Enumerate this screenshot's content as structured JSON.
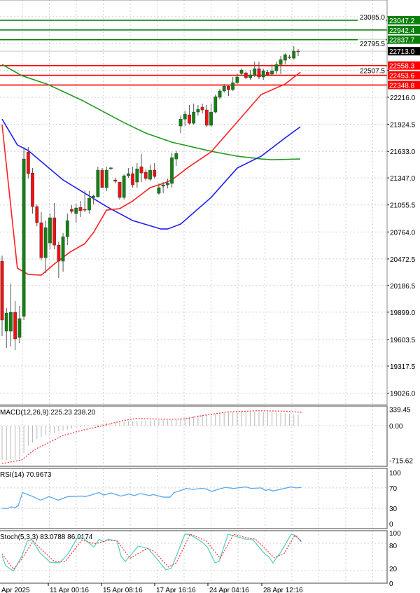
{
  "colors": {
    "bull": "#118211",
    "bear": "#ee1111",
    "ma_fast": "#ff2020",
    "ma_mid": "#1c1cf0",
    "ma_slow": "#1f9a1f",
    "rsi": "#5aa9f0",
    "stoch_k": "#5fcfc4",
    "stoch_d": "#ff3030",
    "resistance": "#0b7f0b",
    "support": "#ff0000",
    "current": "#000000"
  },
  "main": {
    "price_ticks": [
      "23085.0",
      "22795.5",
      "22507.5",
      "22216.0",
      "21924.5",
      "21633.0",
      "21347.0",
      "21055.5",
      "20764.0",
      "20472.5",
      "20186.5",
      "19899.0",
      "19603.5",
      "19317.5",
      "19026.0"
    ],
    "resistance_levels": [
      "23047.2",
      "22942.4",
      "22837.7"
    ],
    "support_levels": [
      "22558.3",
      "22453.6",
      "22348.8"
    ],
    "current_price": "22713.0",
    "candles": [
      [
        20449,
        20509,
        19641,
        19815
      ],
      [
        19694,
        19943,
        19513,
        19890
      ],
      [
        19694,
        20207,
        19528,
        19898
      ],
      [
        19898,
        20019,
        19490,
        19611
      ],
      [
        19626,
        19966,
        19566,
        19830
      ],
      [
        19853,
        21680,
        19815,
        21551
      ],
      [
        21627,
        21680,
        21340,
        21393
      ],
      [
        21400,
        21453,
        20962,
        21038
      ],
      [
        21038,
        21060,
        20826,
        20864
      ],
      [
        20864,
        20977,
        20456,
        20487
      ],
      [
        20487,
        20887,
        20321,
        20811
      ],
      [
        20645,
        20962,
        20577,
        20917
      ],
      [
        20917,
        21076,
        20577,
        20622
      ],
      [
        20622,
        20660,
        20268,
        20449
      ],
      [
        20449,
        20751,
        20336,
        20713
      ],
      [
        20713,
        20962,
        20622,
        20887
      ],
      [
        21008,
        21053,
        20962,
        20985
      ],
      [
        20962,
        21068,
        20864,
        21023
      ],
      [
        21030,
        21098,
        20925,
        20993
      ],
      [
        21008,
        21211,
        20977,
        21000
      ],
      [
        21000,
        21204,
        20962,
        21128
      ],
      [
        21136,
        21166,
        21060,
        21151
      ],
      [
        21143,
        21468,
        21136,
        21430
      ],
      [
        21430,
        21453,
        21242,
        21242
      ],
      [
        21242,
        21468,
        21204,
        21430
      ],
      [
        21453,
        21468,
        21430,
        21455
      ],
      [
        21325,
        21347,
        21287,
        21310
      ],
      [
        21302,
        21302,
        21113,
        21136
      ],
      [
        21136,
        21385,
        21113,
        21370
      ],
      [
        21370,
        21453,
        21347,
        21393
      ],
      [
        21393,
        21468,
        21242,
        21272
      ],
      [
        21302,
        21506,
        21242,
        21445
      ],
      [
        21468,
        21604,
        21302,
        21400
      ],
      [
        21408,
        21438,
        21317,
        21340
      ],
      [
        21332,
        21491,
        21317,
        21430
      ],
      [
        21430,
        21506,
        21340,
        21362
      ],
      [
        21181,
        21287,
        21166,
        21242
      ],
      [
        21257,
        21302,
        21181,
        21272
      ],
      [
        21272,
        21340,
        21234,
        21294
      ],
      [
        21287,
        21619,
        21242,
        21566
      ],
      [
        21551,
        21642,
        21476,
        21611
      ],
      [
        21906,
        22019,
        21830,
        21981
      ],
      [
        21981,
        22072,
        21906,
        22034
      ],
      [
        22027,
        22133,
        21921,
        21936
      ],
      [
        21936,
        22148,
        21921,
        22057
      ],
      [
        22057,
        22133,
        22019,
        22087
      ],
      [
        22110,
        22148,
        22042,
        22080
      ],
      [
        22080,
        22133,
        21898,
        21914
      ],
      [
        21914,
        22148,
        21898,
        22057
      ],
      [
        22057,
        22246,
        22042,
        22223
      ],
      [
        22216,
        22306,
        22193,
        22284
      ],
      [
        22284,
        22359,
        22268,
        22336
      ],
      [
        22336,
        22351,
        22231,
        22299
      ],
      [
        22299,
        22435,
        22284,
        22374
      ],
      [
        22374,
        22472,
        22359,
        22435
      ],
      [
        22472,
        22525,
        22450,
        22510
      ],
      [
        22480,
        22495,
        22412,
        22427
      ],
      [
        22427,
        22510,
        22404,
        22457
      ],
      [
        22457,
        22601,
        22435,
        22525
      ],
      [
        22525,
        22601,
        22412,
        22435
      ],
      [
        22435,
        22525,
        22404,
        22502
      ],
      [
        22487,
        22510,
        22442,
        22457
      ],
      [
        22465,
        22570,
        22450,
        22502
      ],
      [
        22502,
        22601,
        22465,
        22570
      ],
      [
        22570,
        22661,
        22465,
        22623
      ],
      [
        22616,
        22691,
        22570,
        22676
      ],
      [
        22646,
        22676,
        22631,
        22653
      ],
      [
        22638,
        22767,
        22623,
        22714
      ],
      [
        22714,
        22736,
        22661,
        22713
      ]
    ],
    "ma_fast": [
      [
        0,
        21921
      ],
      [
        3.5,
        20374
      ],
      [
        6,
        20306
      ],
      [
        9,
        20298
      ],
      [
        12,
        20419
      ],
      [
        15.6,
        20547
      ],
      [
        19,
        20638
      ],
      [
        21,
        20758
      ],
      [
        24,
        21000
      ],
      [
        27,
        21015
      ],
      [
        30,
        21098
      ],
      [
        34,
        21242
      ],
      [
        37,
        21287
      ],
      [
        39,
        21325
      ],
      [
        42.5,
        21453
      ],
      [
        48,
        21627
      ],
      [
        59.5,
        22246
      ],
      [
        65,
        22359
      ],
      [
        68.5,
        22487
      ]
    ],
    "ma_mid": [
      [
        0,
        21981
      ],
      [
        3.5,
        21702
      ],
      [
        6,
        21642
      ],
      [
        14,
        21325
      ],
      [
        24,
        21038
      ],
      [
        30,
        20887
      ],
      [
        36.5,
        20796
      ],
      [
        38,
        20796
      ],
      [
        41,
        20849
      ],
      [
        48,
        21136
      ],
      [
        54,
        21453
      ],
      [
        59.5,
        21581
      ],
      [
        65,
        21778
      ],
      [
        68.5,
        21898
      ]
    ],
    "ma_slow": [
      [
        0,
        22570
      ],
      [
        4.5,
        22450
      ],
      [
        10.3,
        22359
      ],
      [
        18.3,
        22185
      ],
      [
        28,
        21943
      ],
      [
        33,
        21830
      ],
      [
        39,
        21732
      ],
      [
        48,
        21634
      ],
      [
        54,
        21581
      ],
      [
        59.5,
        21551
      ],
      [
        62,
        21543
      ],
      [
        68.5,
        21551
      ]
    ]
  },
  "macd": {
    "label": "MACD(12,26,9) 225.23 238.20",
    "ticks": [
      "339.45",
      "0.00",
      "-715.62"
    ],
    "histogram": [
      -710,
      -712,
      -705,
      -700,
      -690,
      -560,
      -419,
      -350,
      -275,
      -240,
      -200,
      -175,
      -150,
      -120,
      -100,
      -80,
      -60,
      -45,
      -30,
      -20,
      -10,
      10,
      25,
      40,
      55,
      65,
      80,
      85,
      90,
      95,
      95,
      100,
      100,
      105,
      105,
      110,
      108,
      110,
      110,
      115,
      130,
      150,
      170,
      185,
      200,
      215,
      225,
      230,
      240,
      250,
      260,
      265,
      270,
      275,
      280,
      285,
      285,
      285,
      288,
      285,
      285,
      280,
      275,
      270,
      265,
      255,
      245,
      235,
      225
    ],
    "signal": [
      [
        0,
        -780
      ],
      [
        4.5,
        -708
      ],
      [
        7.5,
        -491
      ],
      [
        10.8,
        -347
      ],
      [
        14,
        -202
      ],
      [
        18.3,
        -97
      ],
      [
        23.3,
        4
      ],
      [
        27.6,
        101
      ],
      [
        30.7,
        149
      ],
      [
        38.3,
        130
      ],
      [
        42,
        140
      ],
      [
        46.3,
        212
      ],
      [
        51.9,
        285
      ],
      [
        58.8,
        308
      ],
      [
        65.1,
        299
      ],
      [
        69,
        275
      ]
    ]
  },
  "rsi": {
    "label": "RSI(14) 70.9673",
    "ticks": [
      "100",
      "70",
      "30",
      "0"
    ],
    "values": [
      [
        0,
        30
      ],
      [
        1.4,
        30
      ],
      [
        2.1,
        33
      ],
      [
        2.9,
        31
      ],
      [
        3.7,
        35
      ],
      [
        4.7,
        61
      ],
      [
        7.1,
        53
      ],
      [
        8.8,
        46
      ],
      [
        10.8,
        53
      ],
      [
        12.9,
        46
      ],
      [
        15.1,
        53
      ],
      [
        18.2,
        54
      ],
      [
        19.1,
        53
      ],
      [
        20.4,
        56
      ],
      [
        22.3,
        61
      ],
      [
        23.3,
        56
      ],
      [
        25.1,
        60
      ],
      [
        27.3,
        54
      ],
      [
        29.1,
        58
      ],
      [
        30.4,
        55
      ],
      [
        31.7,
        59
      ],
      [
        33.9,
        55
      ],
      [
        34.7,
        57
      ],
      [
        37,
        52
      ],
      [
        38.6,
        52
      ],
      [
        39.5,
        61
      ],
      [
        40.7,
        64
      ],
      [
        42.3,
        69
      ],
      [
        43.9,
        67
      ],
      [
        45.7,
        69
      ],
      [
        46.9,
        68
      ],
      [
        48.1,
        63
      ],
      [
        49.5,
        67
      ],
      [
        51.3,
        71
      ],
      [
        53.2,
        69
      ],
      [
        56,
        72
      ],
      [
        57.2,
        69
      ],
      [
        59.5,
        70
      ],
      [
        60.5,
        65
      ],
      [
        61.3,
        67
      ],
      [
        62.2,
        64
      ],
      [
        66.4,
        72
      ],
      [
        67.5,
        70
      ],
      [
        68.7,
        71
      ]
    ]
  },
  "stoch": {
    "label": "Stoch(5,3,3) 83.0788 86.0174",
    "ticks": [
      "100",
      "80",
      "20",
      "0"
    ],
    "k": [
      [
        0,
        53
      ],
      [
        0.8,
        31
      ],
      [
        2.6,
        19
      ],
      [
        4.5,
        51
      ],
      [
        5.8,
        85
      ],
      [
        6.8,
        88
      ],
      [
        8.8,
        58
      ],
      [
        11.1,
        38
      ],
      [
        13.2,
        37
      ],
      [
        15.1,
        56
      ],
      [
        17.4,
        94
      ],
      [
        18.5,
        92
      ],
      [
        21.1,
        72
      ],
      [
        22.3,
        89
      ],
      [
        23.3,
        83
      ],
      [
        24.4,
        89
      ],
      [
        26.4,
        85
      ],
      [
        27.3,
        52
      ],
      [
        28.3,
        40
      ],
      [
        31.3,
        74
      ],
      [
        33.6,
        68
      ],
      [
        37.6,
        22
      ],
      [
        38.9,
        25
      ],
      [
        42,
        100
      ],
      [
        43.2,
        99
      ],
      [
        46,
        82
      ],
      [
        47.2,
        71
      ],
      [
        48.9,
        37
      ],
      [
        49.8,
        40
      ],
      [
        51.9,
        100
      ],
      [
        54.5,
        93
      ],
      [
        55.8,
        89
      ],
      [
        57.5,
        89
      ],
      [
        60.4,
        56
      ],
      [
        61.2,
        51
      ],
      [
        62.2,
        37
      ],
      [
        64.1,
        62
      ],
      [
        66.4,
        100
      ],
      [
        67.5,
        97
      ],
      [
        68.7,
        83
      ]
    ],
    "d": [
      [
        0,
        57
      ],
      [
        2.6,
        23
      ],
      [
        4.5,
        45
      ],
      [
        7.1,
        85
      ],
      [
        9.5,
        62
      ],
      [
        12,
        40
      ],
      [
        14.5,
        40
      ],
      [
        18.3,
        87
      ],
      [
        21.4,
        79
      ],
      [
        24.4,
        87
      ],
      [
        26.4,
        85
      ],
      [
        29.4,
        47
      ],
      [
        33.3,
        69
      ],
      [
        35,
        62
      ],
      [
        38.2,
        28
      ],
      [
        40,
        37
      ],
      [
        43.2,
        100
      ],
      [
        46.9,
        85
      ],
      [
        50.1,
        47
      ],
      [
        53.2,
        100
      ],
      [
        55.8,
        93
      ],
      [
        58.2,
        89
      ],
      [
        62.5,
        48
      ],
      [
        64.8,
        58
      ],
      [
        67.2,
        97
      ],
      [
        68.7,
        86
      ]
    ]
  },
  "x_axis": {
    "labels": [
      "Apr 2025",
      "11 Apr 00:16",
      "15 Apr 08:16",
      "17 Apr 16:16",
      "24 Apr 04:16",
      "28 Apr 12:16"
    ]
  }
}
